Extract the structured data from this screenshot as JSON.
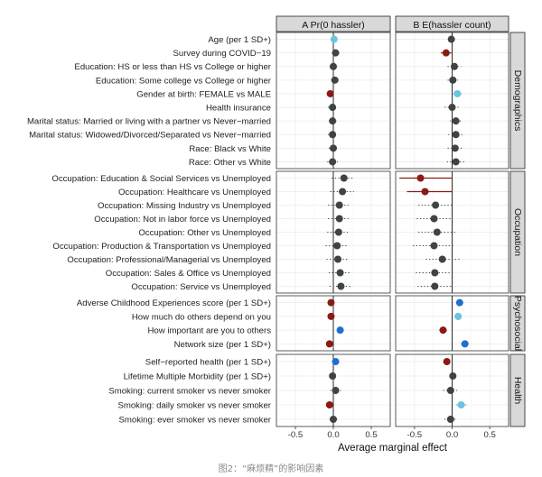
{
  "chart_data": {
    "type": "dot-and-whisker",
    "xlabel": "Average marginal effect",
    "panels": [
      {
        "id": "A",
        "title": "A  Pr(0 hassler)",
        "xlim": [
          -0.75,
          0.75
        ],
        "ticks": [
          -0.5,
          0.0,
          0.5
        ],
        "tick_labels": [
          "-0.5",
          "0.0",
          "0.5"
        ]
      },
      {
        "id": "B",
        "title": "B  E(hassler count)",
        "xlim": [
          -0.75,
          0.75
        ],
        "ticks": [
          -0.5,
          0.0,
          0.5
        ],
        "tick_labels": [
          "-0.5",
          "0.0",
          "0.5"
        ]
      }
    ],
    "groups": [
      {
        "name": "Demographics",
        "rows": [
          {
            "label": "Age (per 1 SD+)",
            "A": {
              "est": 0.01,
              "lo": -0.02,
              "hi": 0.04,
              "sig": "pos-light"
            },
            "B": {
              "est": -0.01,
              "lo": -0.05,
              "hi": 0.03,
              "sig": "ns"
            }
          },
          {
            "label": "Survey during COVID−19",
            "A": {
              "est": 0.03,
              "lo": -0.02,
              "hi": 0.08,
              "sig": "ns"
            },
            "B": {
              "est": -0.08,
              "lo": -0.15,
              "hi": -0.01,
              "sig": "neg"
            }
          },
          {
            "label": "Education: HS or less than HS vs College or higher",
            "A": {
              "est": 0.0,
              "lo": -0.05,
              "hi": 0.05,
              "sig": "ns"
            },
            "B": {
              "est": 0.03,
              "lo": -0.06,
              "hi": 0.12,
              "sig": "ns"
            }
          },
          {
            "label": "Education: Some college vs College or higher",
            "A": {
              "est": 0.02,
              "lo": -0.03,
              "hi": 0.07,
              "sig": "ns"
            },
            "B": {
              "est": 0.01,
              "lo": -0.06,
              "hi": 0.08,
              "sig": "ns"
            }
          },
          {
            "label": "Gender at birth: FEMALE vs MALE",
            "A": {
              "est": -0.04,
              "lo": -0.08,
              "hi": -0.01,
              "sig": "neg"
            },
            "B": {
              "est": 0.07,
              "lo": 0.01,
              "hi": 0.13,
              "sig": "pos-light"
            }
          },
          {
            "label": "Health insurance",
            "A": {
              "est": -0.01,
              "lo": -0.07,
              "hi": 0.05,
              "sig": "ns"
            },
            "B": {
              "est": 0.0,
              "lo": -0.1,
              "hi": 0.1,
              "sig": "ns"
            }
          },
          {
            "label": "Marital status: Married or living with a partner vs Never−married",
            "A": {
              "est": -0.01,
              "lo": -0.06,
              "hi": 0.04,
              "sig": "ns"
            },
            "B": {
              "est": 0.05,
              "lo": -0.03,
              "hi": 0.13,
              "sig": "ns"
            }
          },
          {
            "label": "Marital status: Widowed/Divorced/Separated vs Never−married",
            "A": {
              "est": -0.01,
              "lo": -0.07,
              "hi": 0.05,
              "sig": "ns"
            },
            "B": {
              "est": 0.05,
              "lo": -0.05,
              "hi": 0.15,
              "sig": "ns"
            }
          },
          {
            "label": "Race: Black vs White",
            "A": {
              "est": 0.0,
              "lo": -0.06,
              "hi": 0.06,
              "sig": "ns"
            },
            "B": {
              "est": 0.04,
              "lo": -0.06,
              "hi": 0.14,
              "sig": "ns"
            }
          },
          {
            "label": "Race: Other vs White",
            "A": {
              "est": -0.01,
              "lo": -0.08,
              "hi": 0.06,
              "sig": "ns"
            },
            "B": {
              "est": 0.05,
              "lo": -0.07,
              "hi": 0.17,
              "sig": "ns"
            }
          }
        ]
      },
      {
        "name": "Occupation",
        "rows": [
          {
            "label": "Occupation: Education & Social Services vs Unemployed",
            "A": {
              "est": 0.14,
              "lo": -0.02,
              "hi": 0.28,
              "sig": "ns"
            },
            "B": {
              "est": -0.42,
              "lo": -0.7,
              "hi": 0.0,
              "sig": "neg"
            }
          },
          {
            "label": "Occupation: Healthcare vs Unemployed",
            "A": {
              "est": 0.12,
              "lo": -0.04,
              "hi": 0.27,
              "sig": "ns"
            },
            "B": {
              "est": -0.36,
              "lo": -0.6,
              "hi": 0.0,
              "sig": "neg"
            }
          },
          {
            "label": "Occupation: Missing Industry vs Unemployed",
            "A": {
              "est": 0.08,
              "lo": -0.07,
              "hi": 0.22,
              "sig": "ns"
            },
            "B": {
              "est": -0.22,
              "lo": -0.45,
              "hi": 0.02,
              "sig": "ns"
            }
          },
          {
            "label": "Occupation: Not in labor force vs Unemployed",
            "A": {
              "est": 0.08,
              "lo": -0.07,
              "hi": 0.22,
              "sig": "ns"
            },
            "B": {
              "est": -0.24,
              "lo": -0.47,
              "hi": 0.0,
              "sig": "ns"
            }
          },
          {
            "label": "Occupation: Other vs Unemployed",
            "A": {
              "est": 0.07,
              "lo": -0.08,
              "hi": 0.2,
              "sig": "ns"
            },
            "B": {
              "est": -0.2,
              "lo": -0.45,
              "hi": 0.05,
              "sig": "ns"
            }
          },
          {
            "label": "Occupation: Production & Transportation vs Unemployed",
            "A": {
              "est": 0.05,
              "lo": -0.1,
              "hi": 0.2,
              "sig": "ns"
            },
            "B": {
              "est": -0.24,
              "lo": -0.52,
              "hi": 0.04,
              "sig": "ns"
            }
          },
          {
            "label": "Occupation: Professional/Managerial vs Unemployed",
            "A": {
              "est": 0.06,
              "lo": -0.09,
              "hi": 0.2,
              "sig": "ns"
            },
            "B": {
              "est": -0.13,
              "lo": -0.35,
              "hi": 0.1,
              "sig": "ns"
            }
          },
          {
            "label": "Occupation: Sales & Office vs Unemployed",
            "A": {
              "est": 0.09,
              "lo": -0.06,
              "hi": 0.22,
              "sig": "ns"
            },
            "B": {
              "est": -0.23,
              "lo": -0.48,
              "hi": 0.02,
              "sig": "ns"
            }
          },
          {
            "label": "Occupation: Service vs Unemployed",
            "A": {
              "est": 0.1,
              "lo": -0.05,
              "hi": 0.24,
              "sig": "ns"
            },
            "B": {
              "est": -0.23,
              "lo": -0.46,
              "hi": 0.0,
              "sig": "ns"
            }
          }
        ]
      },
      {
        "name": "Psychosocial",
        "rows": [
          {
            "label": "Adverse Childhood Experiences score (per 1 SD+)",
            "A": {
              "est": -0.03,
              "lo": -0.05,
              "hi": -0.01,
              "sig": "neg"
            },
            "B": {
              "est": 0.1,
              "lo": 0.06,
              "hi": 0.14,
              "sig": "pos"
            }
          },
          {
            "label": "How much do others depend on you",
            "A": {
              "est": -0.03,
              "lo": -0.05,
              "hi": -0.01,
              "sig": "neg"
            },
            "B": {
              "est": 0.08,
              "lo": 0.04,
              "hi": 0.12,
              "sig": "pos-light"
            }
          },
          {
            "label": "How important are you to others",
            "A": {
              "est": 0.09,
              "lo": 0.06,
              "hi": 0.12,
              "sig": "pos"
            },
            "B": {
              "est": -0.12,
              "lo": -0.17,
              "hi": -0.07,
              "sig": "neg"
            }
          },
          {
            "label": "Network size (per 1 SD+)",
            "A": {
              "est": -0.05,
              "lo": -0.07,
              "hi": -0.03,
              "sig": "neg"
            },
            "B": {
              "est": 0.17,
              "lo": 0.12,
              "hi": 0.22,
              "sig": "pos"
            }
          }
        ]
      },
      {
        "name": "Health",
        "rows": [
          {
            "label": "Self−reported health (per 1 SD+)",
            "A": {
              "est": 0.03,
              "lo": 0.01,
              "hi": 0.05,
              "sig": "pos"
            },
            "B": {
              "est": -0.07,
              "lo": -0.11,
              "hi": -0.03,
              "sig": "neg"
            }
          },
          {
            "label": "Lifetime Multiple Morbidity (per 1 SD+)",
            "A": {
              "est": -0.01,
              "lo": -0.03,
              "hi": 0.01,
              "sig": "ns"
            },
            "B": {
              "est": 0.01,
              "lo": -0.03,
              "hi": 0.05,
              "sig": "ns"
            }
          },
          {
            "label": "Smoking: current smoker vs never smoker",
            "A": {
              "est": 0.03,
              "lo": -0.04,
              "hi": 0.1,
              "sig": "ns"
            },
            "B": {
              "est": -0.02,
              "lo": -0.12,
              "hi": 0.08,
              "sig": "ns"
            }
          },
          {
            "label": "Smoking: daily smoker vs never smoker",
            "A": {
              "est": -0.05,
              "lo": -0.09,
              "hi": -0.01,
              "sig": "neg"
            },
            "B": {
              "est": 0.12,
              "lo": 0.05,
              "hi": 0.19,
              "sig": "pos-light"
            }
          },
          {
            "label": "Smoking: ever smoker vs never smoker",
            "A": {
              "est": 0.0,
              "lo": -0.05,
              "hi": 0.05,
              "sig": "ns"
            },
            "B": {
              "est": -0.02,
              "lo": -0.1,
              "hi": 0.06,
              "sig": "ns"
            }
          }
        ]
      }
    ]
  },
  "colors": {
    "ns": "#3d4441",
    "neg": "#8b1a14",
    "pos": "#1f6fd0",
    "pos-light": "#6cc3dd",
    "strip_bg": "#d9d9d9",
    "grid": "#ebebeb",
    "zero_line": "#2b2b2b"
  },
  "caption": "图2：“麻烦精”的影响因素"
}
